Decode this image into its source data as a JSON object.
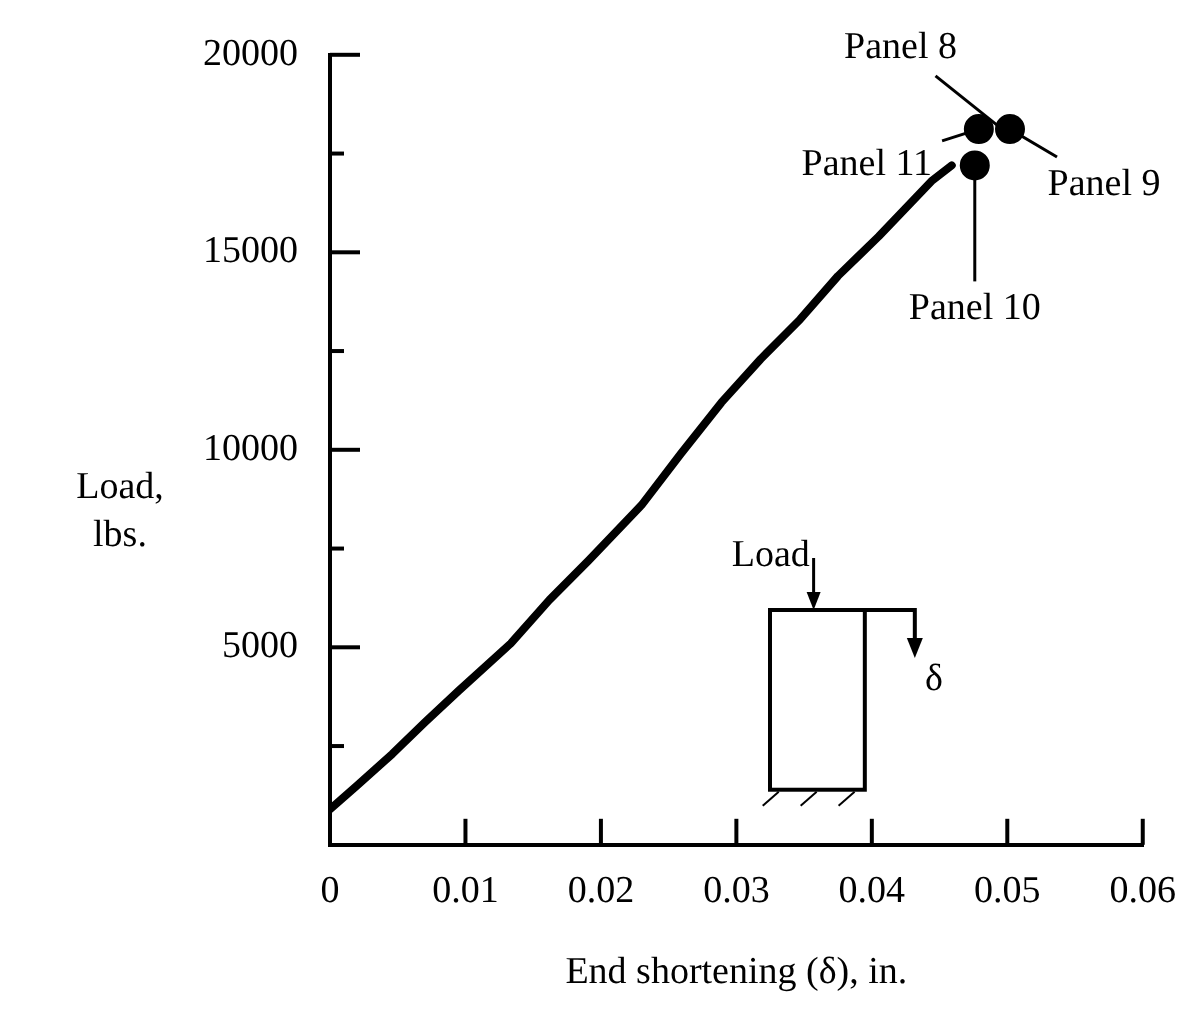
{
  "chart_data": {
    "type": "line",
    "xlabel": "End shortening (δ), in.",
    "ylabel": "Load, lbs.",
    "xlim": [
      0,
      0.06
    ],
    "xticks": [
      0,
      0.01,
      0.02,
      0.03,
      0.04,
      0.05,
      0.06
    ],
    "ylim": [
      0,
      20000
    ],
    "yticks": [
      {
        "value": 2500,
        "label": null
      },
      5000,
      {
        "value": 7500,
        "label": null
      },
      10000,
      {
        "value": 12500,
        "label": null
      },
      15000,
      {
        "value": 17500,
        "label": null
      },
      20000
    ],
    "grid": false,
    "legend": false,
    "series": [
      {
        "color": "#000000",
        "marker": "none",
        "line_style": "solid",
        "x": [
          0,
          0.002,
          0.0046,
          0.007,
          0.0095,
          0.01335,
          0.0162,
          0.0191,
          0.023,
          0.0259,
          0.0289,
          0.0318,
          0.0347,
          0.0375,
          0.0405,
          0.0444,
          0.0459
        ],
        "values": [
          900,
          1500,
          2300,
          3100,
          3900,
          5100,
          6200,
          7200,
          8600,
          9900,
          11200,
          12300,
          13300,
          14400,
          15400,
          16800,
          17200
        ]
      },
      {
        "type": "scatter",
        "color": "#000000",
        "marker": "circle",
        "x": [
          0.0479,
          0.0502,
          0.0476
        ],
        "values": [
          18120,
          18120,
          17200
        ]
      }
    ],
    "annotations": [
      {
        "text": "Panel 8",
        "x": 0.0495,
        "y": 18150
      },
      {
        "text": "Panel 11",
        "x": 0.0479,
        "y": 18120
      },
      {
        "text": "Panel 9",
        "x": 0.0502,
        "y": 18120
      },
      {
        "text": "Panel 10",
        "x": 0.0476,
        "y": 17200
      },
      "Load",
      "δ"
    ]
  }
}
